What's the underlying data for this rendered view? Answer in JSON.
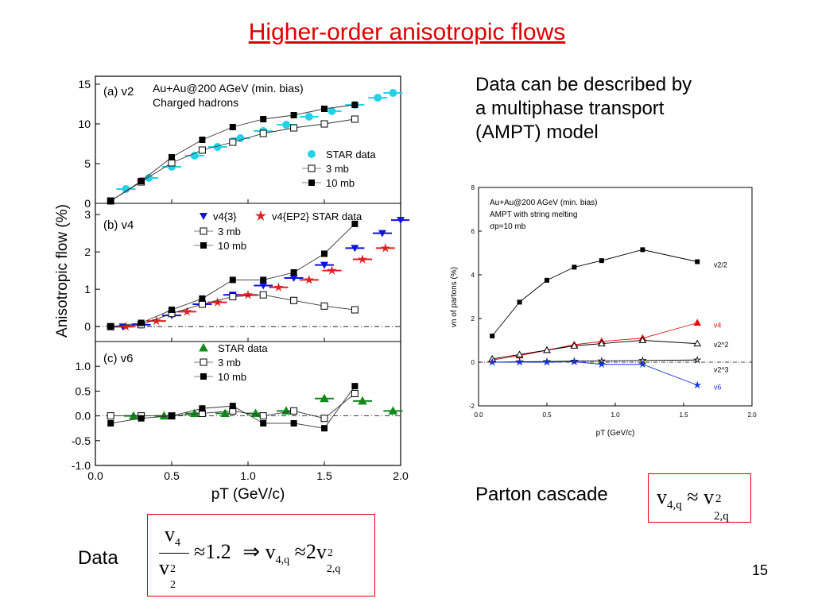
{
  "slide": {
    "title": "Higher-order anisotropic flows",
    "text_right_lines": [
      "Data can be described by",
      "a multiphase transport",
      "(AMPT) model"
    ],
    "parton_cascade_label": "Parton cascade",
    "data_label": "Data",
    "page_number": "15",
    "accent_color": "#e00000"
  },
  "formula_data": {
    "num": "v",
    "num_sub": "4",
    "den": "v",
    "den_sub": "2",
    "den_sup": "2",
    "approx": "≈",
    "value": "1.2",
    "implies": "⇒",
    "lhs": "v",
    "lhs_sub": "4,q",
    "approx2": "≈",
    "coef": "2",
    "rhs": "v",
    "rhs_sub": "2,q",
    "rhs_sup": "2"
  },
  "formula_parton": {
    "lhs": "v",
    "lhs_sub": "4,q",
    "approx": "≈",
    "rhs": "v",
    "rhs_sub": "2,q",
    "rhs_sup": "2"
  },
  "chart_data": [
    {
      "type": "scatter",
      "panel_tag": "(a) v2",
      "header_lines": [
        "Au+Au@200 AGeV (min. bias)",
        "Charged hadrons"
      ],
      "ylabel": "Anisotropic flow (%)",
      "xlabel": "pT (GeV/c)",
      "xlim": [
        0,
        2.0
      ],
      "ylim": [
        0,
        16
      ],
      "yticks": [
        "0",
        "5",
        "10",
        "15"
      ],
      "xticks": [
        "0.0",
        "0.5",
        "1.0",
        "1.5",
        "2.0"
      ],
      "legend": [
        "STAR data",
        "3 mb",
        "10 mb"
      ],
      "series": [
        {
          "name": "STAR data",
          "color": "#22d3e8",
          "marker": "circle",
          "x": [
            0.2,
            0.35,
            0.5,
            0.65,
            0.8,
            0.95,
            1.1,
            1.25,
            1.4,
            1.55,
            1.7,
            1.85,
            1.95
          ],
          "y": [
            1.8,
            3.2,
            4.6,
            6.0,
            7.1,
            8.2,
            9.1,
            9.9,
            10.9,
            11.6,
            12.4,
            13.3,
            13.9
          ]
        },
        {
          "name": "3 mb",
          "color": "#000000",
          "marker": "open-square",
          "x": [
            0.1,
            0.3,
            0.5,
            0.7,
            0.9,
            1.1,
            1.3,
            1.5,
            1.7
          ],
          "y": [
            0.3,
            2.7,
            5.1,
            6.7,
            7.7,
            8.8,
            9.5,
            10.0,
            10.6
          ]
        },
        {
          "name": "10 mb",
          "color": "#000000",
          "marker": "filled-square",
          "x": [
            0.1,
            0.3,
            0.5,
            0.7,
            0.9,
            1.1,
            1.3,
            1.5,
            1.7
          ],
          "y": [
            0.3,
            2.8,
            5.8,
            8.0,
            9.6,
            10.6,
            11.1,
            11.9,
            12.4
          ]
        }
      ]
    },
    {
      "type": "scatter",
      "panel_tag": "(b) v4",
      "xlim": [
        0,
        2.0
      ],
      "ylim": [
        -0.4,
        3.3
      ],
      "yticks": [
        "0",
        "1",
        "2",
        "3"
      ],
      "legend": [
        "v4{3}",
        "v4{EP2} STAR data",
        "3 mb",
        "10 mb"
      ],
      "series": [
        {
          "name": "v4{3}",
          "color": "#1010e0",
          "marker": "down-triangle",
          "x": [
            0.18,
            0.3,
            0.5,
            0.7,
            0.9,
            1.1,
            1.3,
            1.5,
            1.7,
            1.88,
            2.0
          ],
          "y": [
            0.0,
            0.05,
            0.3,
            0.6,
            0.85,
            1.1,
            1.3,
            1.65,
            2.1,
            2.5,
            2.85
          ]
        },
        {
          "name": "v4{EP2} STAR data",
          "color": "#e02020",
          "marker": "star",
          "x": [
            0.2,
            0.4,
            0.6,
            0.8,
            1.0,
            1.2,
            1.4,
            1.55,
            1.75,
            1.9
          ],
          "y": [
            0.0,
            0.15,
            0.4,
            0.65,
            0.85,
            1.05,
            1.25,
            1.5,
            1.8,
            2.1
          ]
        },
        {
          "name": "3 mb",
          "color": "#000000",
          "marker": "open-square",
          "x": [
            0.1,
            0.3,
            0.5,
            0.7,
            0.9,
            1.1,
            1.3,
            1.5,
            1.7
          ],
          "y": [
            0.0,
            0.05,
            0.35,
            0.6,
            0.8,
            0.85,
            0.7,
            0.55,
            0.45
          ]
        },
        {
          "name": "10 mb",
          "color": "#000000",
          "marker": "filled-square",
          "x": [
            0.1,
            0.3,
            0.5,
            0.7,
            0.9,
            1.1,
            1.3,
            1.5,
            1.7
          ],
          "y": [
            0.0,
            0.1,
            0.45,
            0.75,
            1.25,
            1.25,
            1.45,
            1.95,
            2.75
          ]
        }
      ]
    },
    {
      "type": "scatter",
      "panel_tag": "(c) v6",
      "xlim": [
        0,
        2.0
      ],
      "ylim": [
        -1.0,
        1.5
      ],
      "yticks": [
        "1.0",
        "0.5",
        "0.0",
        "-0.5",
        "-1.0"
      ],
      "legend": [
        "STAR data",
        "3 mb",
        "10 mb"
      ],
      "series": [
        {
          "name": "STAR data",
          "color": "#11881a",
          "marker": "triangle",
          "x": [
            0.25,
            0.45,
            0.65,
            0.85,
            1.05,
            1.25,
            1.5,
            1.75,
            1.95
          ],
          "y": [
            0.0,
            0.0,
            0.05,
            0.05,
            0.05,
            0.1,
            0.35,
            0.3,
            0.1
          ]
        },
        {
          "name": "3 mb",
          "color": "#000000",
          "marker": "open-square",
          "x": [
            0.1,
            0.3,
            0.5,
            0.7,
            0.9,
            1.1,
            1.3,
            1.5,
            1.7
          ],
          "y": [
            0.0,
            0.0,
            0.0,
            0.05,
            0.1,
            0.0,
            0.1,
            -0.05,
            0.45
          ]
        },
        {
          "name": "10 mb",
          "color": "#000000",
          "marker": "filled-square",
          "x": [
            0.1,
            0.3,
            0.5,
            0.7,
            0.9,
            1.1,
            1.3,
            1.5,
            1.7
          ],
          "y": [
            -0.15,
            -0.05,
            0.0,
            0.15,
            0.2,
            -0.15,
            -0.15,
            -0.25,
            0.6
          ]
        }
      ]
    },
    {
      "type": "line",
      "header_lines": [
        "Au+Au@200 AGeV (min. bias)",
        "AMPT with string melting",
        "σp=10 mb"
      ],
      "xlabel": "pT (GeV/c)",
      "ylabel": "vn of partons (%)",
      "xlim": [
        0,
        2.0
      ],
      "ylim": [
        -2,
        8
      ],
      "xticks": [
        "0.0",
        "0.5",
        "1.0",
        "1.5",
        "2.0"
      ],
      "yticks": [
        "-2",
        "0",
        "2",
        "4",
        "6",
        "8"
      ],
      "series": [
        {
          "name": "v2/2",
          "color": "#000000",
          "marker": "filled-square",
          "x": [
            0.1,
            0.3,
            0.5,
            0.7,
            0.9,
            1.2,
            1.6
          ],
          "y": [
            1.2,
            2.75,
            3.75,
            4.35,
            4.65,
            5.15,
            4.6
          ]
        },
        {
          "name": "v4",
          "color": "#e01010",
          "marker": "triangle",
          "x": [
            0.1,
            0.3,
            0.5,
            0.7,
            0.9,
            1.2,
            1.6
          ],
          "y": [
            0.1,
            0.3,
            0.55,
            0.8,
            0.95,
            1.1,
            1.8
          ]
        },
        {
          "name": "v2^2",
          "color": "#000000",
          "marker": "open-triangle",
          "x": [
            0.1,
            0.3,
            0.5,
            0.7,
            0.9,
            1.2,
            1.6
          ],
          "y": [
            0.15,
            0.35,
            0.55,
            0.75,
            0.85,
            1.0,
            0.85
          ]
        },
        {
          "name": "v2^3",
          "color": "#000000",
          "marker": "open-star",
          "x": [
            0.1,
            0.3,
            0.5,
            0.7,
            0.9,
            1.2,
            1.6
          ],
          "y": [
            0.0,
            0.02,
            0.03,
            0.05,
            0.06,
            0.08,
            0.1
          ]
        },
        {
          "name": "v6",
          "color": "#1030e0",
          "marker": "star",
          "x": [
            0.1,
            0.3,
            0.5,
            0.7,
            0.9,
            1.2,
            1.6
          ],
          "y": [
            0.0,
            0.0,
            0.0,
            0.02,
            -0.1,
            -0.1,
            -1.05
          ]
        }
      ],
      "series_labels": [
        "v2/2",
        "v4",
        "v2^2",
        "v2^3",
        "v6"
      ]
    }
  ]
}
